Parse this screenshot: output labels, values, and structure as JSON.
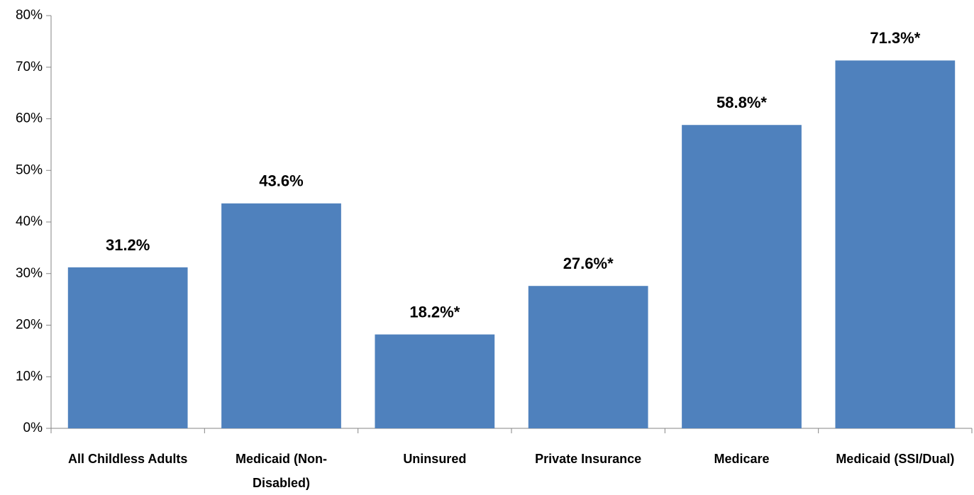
{
  "chart_data": {
    "type": "bar",
    "categories": [
      "All Childless Adults",
      "Medicaid (Non-Disabled)",
      "Uninsured",
      "Private Insurance",
      "Medicare",
      "Medicaid (SSI/Dual)"
    ],
    "values": [
      31.2,
      43.6,
      18.2,
      27.6,
      58.8,
      71.3
    ],
    "value_labels": [
      "31.2%",
      "43.6%",
      "18.2%*",
      "27.6%*",
      "58.8%*",
      "71.3%*"
    ],
    "color": "#4f81bd",
    "ylim": [
      0,
      80
    ],
    "yticks": [
      {
        "value": 0,
        "label": "0%"
      },
      {
        "value": 10,
        "label": "10%"
      },
      {
        "value": 20,
        "label": "20%"
      },
      {
        "value": 30,
        "label": "30%"
      },
      {
        "value": 40,
        "label": "40%"
      },
      {
        "value": 50,
        "label": "50%"
      },
      {
        "value": 60,
        "label": "60%"
      },
      {
        "value": 70,
        "label": "70%"
      },
      {
        "value": 80,
        "label": "80%"
      }
    ],
    "grid": false
  }
}
